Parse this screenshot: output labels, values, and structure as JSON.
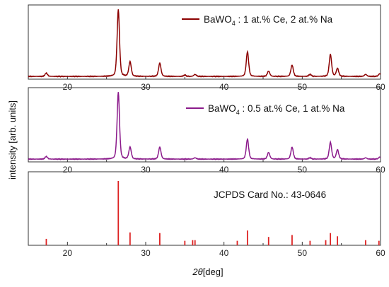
{
  "chart_data": {
    "type": "line",
    "xlabel_symbol": "2θ",
    "xlabel_unit": "[deg]",
    "ylabel": "intensity [arb. units]",
    "xlim": [
      15,
      60
    ],
    "xticks": [
      20,
      30,
      40,
      50,
      60
    ],
    "colors": {
      "series1": "#8b0000",
      "series2": "#8b1a8b",
      "reference": "#dd2222"
    },
    "series": [
      {
        "id": "s1",
        "legend": {
          "base": "BaWO",
          "sub": "4",
          "rest": " : 1 at.% Ce, 2 at.% Na"
        },
        "baseline": 0.02,
        "peaks": [
          {
            "x": 17.3,
            "y": 0.05
          },
          {
            "x": 26.5,
            "y": 1.0
          },
          {
            "x": 28.0,
            "y": 0.22
          },
          {
            "x": 31.8,
            "y": 0.2
          },
          {
            "x": 35.0,
            "y": 0.02
          },
          {
            "x": 36.3,
            "y": 0.03
          },
          {
            "x": 43.0,
            "y": 0.37
          },
          {
            "x": 45.7,
            "y": 0.08
          },
          {
            "x": 48.7,
            "y": 0.17
          },
          {
            "x": 51.0,
            "y": 0.03
          },
          {
            "x": 53.6,
            "y": 0.33
          },
          {
            "x": 54.5,
            "y": 0.12
          },
          {
            "x": 58.1,
            "y": 0.03
          },
          {
            "x": 59.9,
            "y": 0.04
          }
        ]
      },
      {
        "id": "s2",
        "legend": {
          "base": "BaWO",
          "sub": "4",
          "rest": " : 0.5 at.% Ce, 1 at.% Na"
        },
        "baseline": 0.02,
        "peaks": [
          {
            "x": 17.3,
            "y": 0.04
          },
          {
            "x": 26.5,
            "y": 1.0
          },
          {
            "x": 28.0,
            "y": 0.18
          },
          {
            "x": 31.8,
            "y": 0.18
          },
          {
            "x": 36.3,
            "y": 0.02
          },
          {
            "x": 43.0,
            "y": 0.3
          },
          {
            "x": 45.7,
            "y": 0.1
          },
          {
            "x": 48.7,
            "y": 0.18
          },
          {
            "x": 51.0,
            "y": 0.02
          },
          {
            "x": 53.6,
            "y": 0.25
          },
          {
            "x": 54.5,
            "y": 0.14
          },
          {
            "x": 58.1,
            "y": 0.02
          },
          {
            "x": 59.9,
            "y": 0.03
          }
        ]
      }
    ],
    "reference": {
      "label": "JCPDS Card No.: 43-0646",
      "lines": [
        {
          "x": 17.3,
          "y": 0.1
        },
        {
          "x": 26.5,
          "y": 1.0
        },
        {
          "x": 28.0,
          "y": 0.2
        },
        {
          "x": 31.8,
          "y": 0.19
        },
        {
          "x": 35.0,
          "y": 0.07
        },
        {
          "x": 36.0,
          "y": 0.08
        },
        {
          "x": 36.3,
          "y": 0.08
        },
        {
          "x": 41.7,
          "y": 0.07
        },
        {
          "x": 43.0,
          "y": 0.23
        },
        {
          "x": 45.7,
          "y": 0.13
        },
        {
          "x": 48.7,
          "y": 0.16
        },
        {
          "x": 51.0,
          "y": 0.07
        },
        {
          "x": 53.0,
          "y": 0.08
        },
        {
          "x": 53.6,
          "y": 0.19
        },
        {
          "x": 54.5,
          "y": 0.14
        },
        {
          "x": 58.1,
          "y": 0.08
        },
        {
          "x": 59.8,
          "y": 0.07
        }
      ]
    }
  }
}
